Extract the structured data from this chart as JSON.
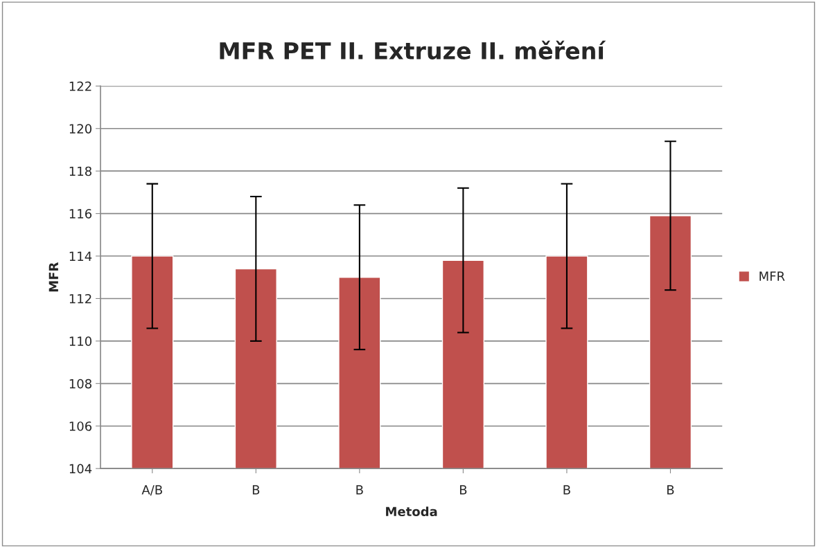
{
  "chart_data": {
    "type": "bar",
    "title": "MFR PET II. Extruze II. měření",
    "xlabel": "Metoda",
    "ylabel": "MFR",
    "categories": [
      "A/B",
      "B",
      "B",
      "B",
      "B",
      "B"
    ],
    "series": [
      {
        "name": "MFR",
        "color": "#c0504d",
        "values": [
          114.0,
          113.4,
          113.0,
          113.8,
          114.0,
          115.9
        ],
        "errors": [
          3.4,
          3.4,
          3.4,
          3.4,
          3.4,
          3.5
        ]
      }
    ],
    "ylim": [
      104,
      122
    ],
    "yticks": [
      104,
      106,
      108,
      110,
      112,
      114,
      116,
      118,
      120,
      122
    ],
    "grid": "y",
    "legend": "right"
  }
}
